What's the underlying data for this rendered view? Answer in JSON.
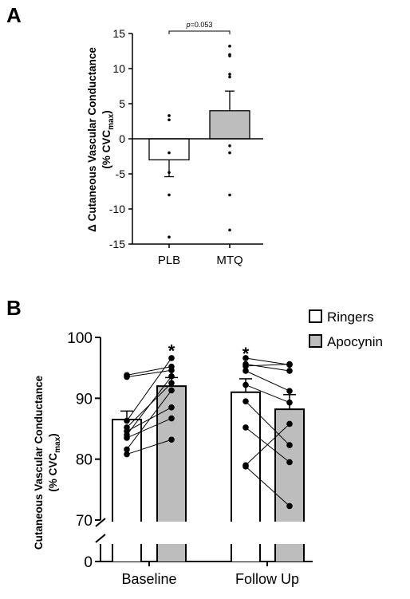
{
  "chart_data": [
    {
      "panel_label": "A",
      "type": "bar",
      "categories": [
        "PLB",
        "MTQ"
      ],
      "values": [
        -3.0,
        4.0
      ],
      "sem": [
        2.4,
        2.8
      ],
      "bar_colors": [
        "#ffffff",
        "#bdbdbd"
      ],
      "points": [
        [
          3.3,
          2.7,
          -2.0,
          -4.8,
          -8.0,
          -14.0
        ],
        [
          13.2,
          12.0,
          11.8,
          9.2,
          8.8,
          -1.0,
          -2.0,
          -8.0,
          -13.0
        ]
      ],
      "ylabel_line1": "Δ Cutaneous Vascular Conductance",
      "ylabel_line2_prefix": "(% CVC",
      "ylabel_line2_sub": "max",
      "ylabel_line2_suffix": ")",
      "ylim": [
        -15,
        15
      ],
      "yticks": [
        15,
        10,
        5,
        0,
        -5,
        -10,
        -15
      ],
      "yticks_labels": [
        "15",
        "10",
        "5",
        "0",
        "-5",
        "-10",
        "-15"
      ],
      "annotation_p_italic": "p",
      "annotation_p_rest": "=0.053"
    },
    {
      "panel_label": "B",
      "type": "bar",
      "categories": [
        "Baseline",
        "Follow Up"
      ],
      "series": [
        {
          "name": "Ringers",
          "color": "#ffffff",
          "values": [
            86.5,
            91.0
          ],
          "sem": [
            1.4,
            2.2
          ]
        },
        {
          "name": "Apocynin",
          "color": "#bdbdbd",
          "values": [
            92.0,
            88.2
          ],
          "sem": [
            1.4,
            2.4
          ]
        }
      ],
      "paired_points": [
        {
          "category": "Baseline",
          "pairs": [
            [
              93.8,
              95.2
            ],
            [
              93.5,
              94.6
            ],
            [
              86.3,
              96.6
            ],
            [
              85.2,
              92.5
            ],
            [
              84.6,
              88.5
            ],
            [
              84.0,
              93.6
            ],
            [
              83.5,
              86.7
            ],
            [
              81.6,
              91.3
            ],
            [
              80.8,
              83.2
            ]
          ]
        },
        {
          "category": "Follow Up",
          "pairs": [
            [
              96.6,
              95.5
            ],
            [
              95.6,
              94.5
            ],
            [
              95.3,
              95.6
            ],
            [
              94.5,
              91.2
            ],
            [
              92.2,
              89.3
            ],
            [
              89.5,
              82.3
            ],
            [
              85.2,
              79.5
            ],
            [
              79.0,
              85.8
            ],
            [
              78.8,
              72.3
            ]
          ]
        }
      ],
      "significance_marker": "*",
      "significance_on": [
        "Baseline/Apocynin",
        "Follow Up/Ringers"
      ],
      "ylabel_line1": "Cutaneous Vascular Conductance",
      "ylabel_line2_prefix": "(% CVC",
      "ylabel_line2_sub": "max",
      "ylabel_line2_suffix": ")",
      "ylim": [
        70,
        100
      ],
      "axis_break": true,
      "yticks": [
        100,
        90,
        80,
        70,
        0
      ],
      "yticks_labels": [
        "100",
        "90",
        "80",
        "70",
        "0"
      ],
      "legend_position": "top-right"
    }
  ]
}
